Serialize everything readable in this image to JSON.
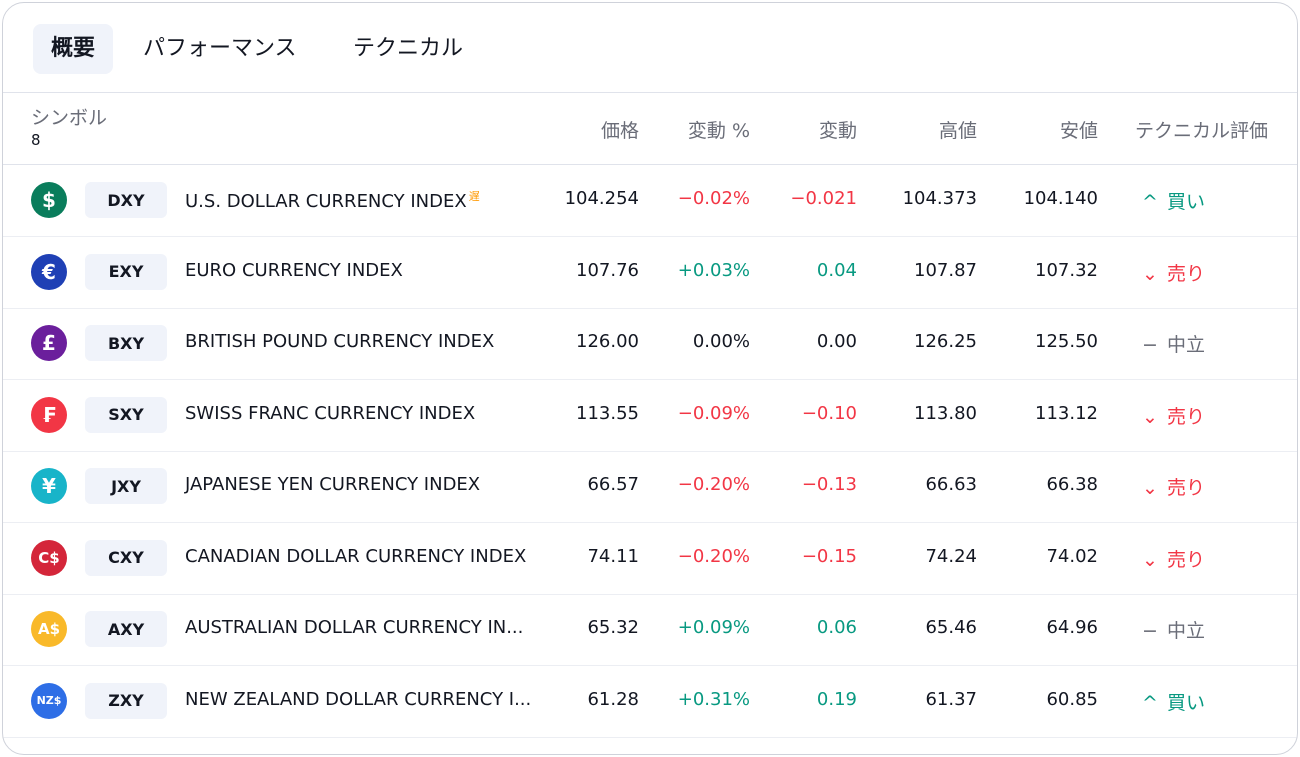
{
  "tabs": [
    {
      "label": "概要",
      "active": true
    },
    {
      "label": "パフォーマンス",
      "active": false
    },
    {
      "label": "テクニカル",
      "active": false
    }
  ],
  "header": {
    "symbol": "シンボル",
    "count": "8",
    "price": "価格",
    "change_pct": "変動 %",
    "change": "変動",
    "high": "高値",
    "low": "安値",
    "rating": "テクニカル評価"
  },
  "colors": {
    "positive": "#089981",
    "negative": "#f23645",
    "tab_active_bg": "#f0f3fa"
  },
  "rows": [
    {
      "flag_symbol": "$",
      "flag_color": "#0a7d5c",
      "ticker": "DXY",
      "name": "U.S. DOLLAR CURRENCY INDEX",
      "delay": "遅",
      "price": "104.254",
      "change_pct": "−0.02%",
      "change": "−0.021",
      "high": "104.373",
      "low": "104.140",
      "rating_icon": "^",
      "rating": "買い",
      "dir": "neg",
      "rcls": "buy"
    },
    {
      "flag_symbol": "€",
      "flag_color": "#1f40b5",
      "ticker": "EXY",
      "name": "EURO CURRENCY INDEX",
      "delay": "",
      "price": "107.76",
      "change_pct": "+0.03%",
      "change": "0.04",
      "high": "107.87",
      "low": "107.32",
      "rating_icon": "⌄",
      "rating": "売り",
      "dir": "pos",
      "rcls": "sell"
    },
    {
      "flag_symbol": "£",
      "flag_color": "#6b1f9c",
      "ticker": "BXY",
      "name": "BRITISH POUND CURRENCY INDEX",
      "delay": "",
      "price": "126.00",
      "change_pct": "0.00%",
      "change": "0.00",
      "high": "126.25",
      "low": "125.50",
      "rating_icon": "−",
      "rating": "中立",
      "dir": "neu",
      "rcls": "neutral"
    },
    {
      "flag_symbol": "₣",
      "flag_color": "#f23645",
      "ticker": "SXY",
      "name": "SWISS FRANC CURRENCY INDEX",
      "delay": "",
      "price": "113.55",
      "change_pct": "−0.09%",
      "change": "−0.10",
      "high": "113.80",
      "low": "113.12",
      "rating_icon": "⌄",
      "rating": "売り",
      "dir": "neg",
      "rcls": "sell"
    },
    {
      "flag_symbol": "¥",
      "flag_color": "#18b4c9",
      "ticker": "JXY",
      "name": "JAPANESE YEN CURRENCY INDEX",
      "delay": "",
      "price": "66.57",
      "change_pct": "−0.20%",
      "change": "−0.13",
      "high": "66.63",
      "low": "66.38",
      "rating_icon": "⌄",
      "rating": "売り",
      "dir": "neg",
      "rcls": "sell"
    },
    {
      "flag_symbol": "C$",
      "flag_color": "#d4263a",
      "ticker": "CXY",
      "name": "CANADIAN DOLLAR CURRENCY INDEX",
      "delay": "",
      "price": "74.11",
      "change_pct": "−0.20%",
      "change": "−0.15",
      "high": "74.24",
      "low": "74.02",
      "rating_icon": "⌄",
      "rating": "売り",
      "dir": "neg",
      "rcls": "sell"
    },
    {
      "flag_symbol": "A$",
      "flag_color": "#f9b92a",
      "ticker": "AXY",
      "name": "AUSTRALIAN DOLLAR CURRENCY IN...",
      "delay": "",
      "price": "65.32",
      "change_pct": "+0.09%",
      "change": "0.06",
      "high": "65.46",
      "low": "64.96",
      "rating_icon": "−",
      "rating": "中立",
      "dir": "pos",
      "rcls": "neutral"
    },
    {
      "flag_symbol": "NZ$",
      "flag_color": "#2e6ee6",
      "ticker": "ZXY",
      "name": "NEW ZEALAND DOLLAR CURRENCY I...",
      "delay": "",
      "price": "61.28",
      "change_pct": "+0.31%",
      "change": "0.19",
      "high": "61.37",
      "low": "60.85",
      "rating_icon": "^",
      "rating": "買い",
      "dir": "pos",
      "rcls": "buy"
    }
  ]
}
